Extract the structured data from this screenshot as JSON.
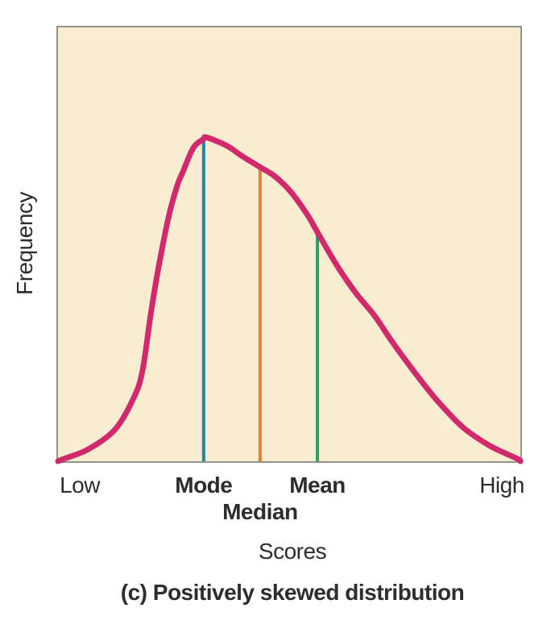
{
  "figure": {
    "caption": "(c) Positively skewed distribution",
    "ylabel": "Frequency",
    "xlabel": "Scores"
  },
  "chart_data": {
    "type": "line",
    "title": "(c) Positively skewed distribution",
    "xlabel": "Scores",
    "ylabel": "Frequency",
    "x_tick_labels": [
      "Low",
      "High"
    ],
    "y_tick_labels": [],
    "grid": false,
    "legend": false,
    "skew_direction": "positive",
    "colors": {
      "curve": "#d2286c",
      "plot_bg": "#f9edd1",
      "plot_border": "#93928a",
      "text": "#2e2d2b"
    },
    "curve_points": [
      [
        0.0,
        1.0
      ],
      [
        0.014,
        0.994
      ],
      [
        0.066,
        0.972
      ],
      [
        0.124,
        0.926
      ],
      [
        0.165,
        0.851
      ],
      [
        0.183,
        0.79
      ],
      [
        0.2,
        0.665
      ],
      [
        0.218,
        0.55
      ],
      [
        0.24,
        0.433
      ],
      [
        0.258,
        0.364
      ],
      [
        0.27,
        0.333
      ],
      [
        0.293,
        0.277
      ],
      [
        0.315,
        0.257
      ],
      [
        0.319,
        0.253
      ],
      [
        0.343,
        0.262
      ],
      [
        0.369,
        0.275
      ],
      [
        0.397,
        0.296
      ],
      [
        0.437,
        0.322
      ],
      [
        0.47,
        0.344
      ],
      [
        0.505,
        0.381
      ],
      [
        0.54,
        0.433
      ],
      [
        0.561,
        0.472
      ],
      [
        0.604,
        0.55
      ],
      [
        0.644,
        0.612
      ],
      [
        0.685,
        0.665
      ],
      [
        0.723,
        0.725
      ],
      [
        0.772,
        0.796
      ],
      [
        0.819,
        0.859
      ],
      [
        0.876,
        0.922
      ],
      [
        0.935,
        0.965
      ],
      [
        0.993,
        0.994
      ],
      [
        1.0,
        1.0
      ]
    ],
    "markers": [
      {
        "name": "mode",
        "label": "Mode",
        "color": "#1e83ae",
        "x": 0.315,
        "y_top": 0.257
      },
      {
        "name": "median",
        "label": "Median",
        "color": "#e5813c",
        "x": 0.437,
        "y_top": 0.325
      },
      {
        "name": "mean",
        "label": "Mean",
        "color": "#29a067",
        "x": 0.561,
        "y_top": 0.476
      }
    ]
  }
}
